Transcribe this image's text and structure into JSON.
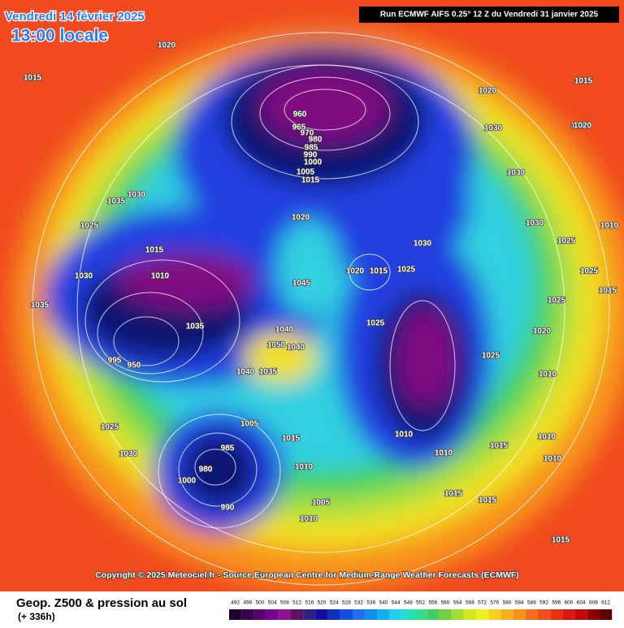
{
  "header": {
    "date": "Vendredi 14 février 2025",
    "time": "13:00 locale",
    "run": "Run ECMWF AIFS 0.25° 12 Z du Vendredi 31 janvier 2025"
  },
  "copyright": "Copyright © 2025 Meteociel.fr - Source European Centre for Medium-Range Weather Forecasts (ECMWF)",
  "footer": {
    "title": "Geop. Z500 & pression au sol",
    "lead": "(+ 336h)"
  },
  "scale": [
    492,
    496,
    500,
    504,
    508,
    512,
    516,
    520,
    524,
    528,
    532,
    536,
    540,
    544,
    548,
    552,
    556,
    560,
    564,
    568,
    572,
    576,
    580,
    584,
    588,
    592,
    596,
    600,
    604,
    608,
    612
  ],
  "isobars": [
    "1020",
    "1015",
    "960",
    "965",
    "970",
    "980",
    "985",
    "990",
    "1000",
    "1005",
    "1015",
    "1020",
    "1015",
    "1020",
    "1030",
    "1030",
    "1020",
    "1035",
    "1030",
    "1015",
    "1025",
    "1030",
    "1010",
    "1035",
    "1045",
    "1020",
    "1015",
    "1025",
    "1025",
    "1030",
    "1035",
    "1040",
    "1050",
    "1040",
    "1040",
    "1035",
    "995",
    "950",
    "1025",
    "1005",
    "1015",
    "985",
    "980",
    "1000",
    "990",
    "1010",
    "1005",
    "1010",
    "1010",
    "1010",
    "1015",
    "1015",
    "1025",
    "1030",
    "1010",
    "1015",
    "1010",
    "1015",
    "1020",
    "1010",
    "1030",
    "1025",
    "1015",
    "1025",
    "1020",
    "1010",
    "1025"
  ]
}
